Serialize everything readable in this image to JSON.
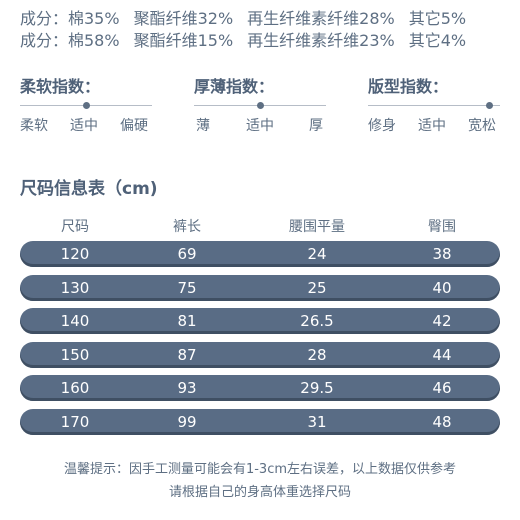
{
  "composition": [
    [
      "成分：棉35%",
      "聚酯纤维32%",
      "再生纤维素纤维28%",
      "其它5%"
    ],
    [
      "成分：棉58%",
      "聚酯纤维15%",
      "再生纤维素纤维23%",
      "其它4%"
    ]
  ],
  "indices": [
    {
      "title": "柔软指数：",
      "labels": [
        "柔软",
        "适中",
        "偏硬"
      ],
      "level": "适中"
    },
    {
      "title": "厚薄指数：",
      "labels": [
        "薄",
        "适中",
        "厚"
      ],
      "level": "适中"
    },
    {
      "title": "版型指数：",
      "labels": [
        "修身",
        "适中",
        "宽松"
      ],
      "level": "宽松"
    }
  ],
  "size_table": {
    "title": "尺码信息表（cm)",
    "headers": [
      "尺码",
      "裤长",
      "腰围平量",
      "臀围"
    ],
    "rows": [
      [
        "120",
        "69",
        "24",
        "38"
      ],
      [
        "130",
        "75",
        "25",
        "40"
      ],
      [
        "140",
        "81",
        "26.5",
        "42"
      ],
      [
        "150",
        "87",
        "28",
        "44"
      ],
      [
        "160",
        "93",
        "29.5",
        "46"
      ],
      [
        "170",
        "99",
        "31",
        "48"
      ]
    ]
  },
  "tips": [
    "温馨提示：因手工测量可能会有1-3cm左右误差，以上数据仅供参考",
    "请根据自己的身高体重选择尺码"
  ],
  "colors": {
    "accent": "#596c85",
    "text": "#5e6f83"
  }
}
